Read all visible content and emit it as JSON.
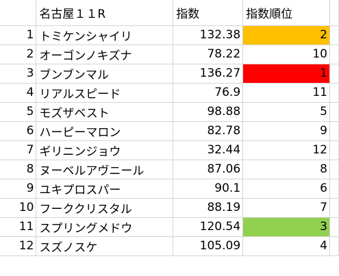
{
  "header": {
    "name": "名古屋１１R",
    "score": "指数",
    "rank": "指数順位"
  },
  "rows": [
    {
      "no": "1",
      "name": "トミケンシャイリ",
      "score": "132.38",
      "rank": "2",
      "fill": "#ffc000"
    },
    {
      "no": "2",
      "name": "オーゴンノキズナ",
      "score": "78.22",
      "rank": "10"
    },
    {
      "no": "3",
      "name": "ブンブンマル",
      "score": "136.27",
      "rank": "1",
      "fill": "#ff0000"
    },
    {
      "no": "4",
      "name": "リアルスピード",
      "score": "76.9",
      "rank": "11"
    },
    {
      "no": "5",
      "name": "モズザベスト",
      "score": "98.88",
      "rank": "5"
    },
    {
      "no": "6",
      "name": "ハーピーマロン",
      "score": "82.78",
      "rank": "9"
    },
    {
      "no": "7",
      "name": "ギリニンジョウ",
      "score": "32.44",
      "rank": "12"
    },
    {
      "no": "8",
      "name": "ヌーベルアヴニール",
      "score": "87.06",
      "rank": "8"
    },
    {
      "no": "9",
      "name": "ユキプロスパー",
      "score": "90.1",
      "rank": "6"
    },
    {
      "no": "10",
      "name": "フーククリスタル",
      "score": "88.19",
      "rank": "7"
    },
    {
      "no": "11",
      "name": "スプリングメドウ",
      "score": "120.54",
      "rank": "3",
      "fill": "#92d050"
    },
    {
      "no": "12",
      "name": "スズノスケ",
      "score": "105.09",
      "rank": "4"
    }
  ]
}
